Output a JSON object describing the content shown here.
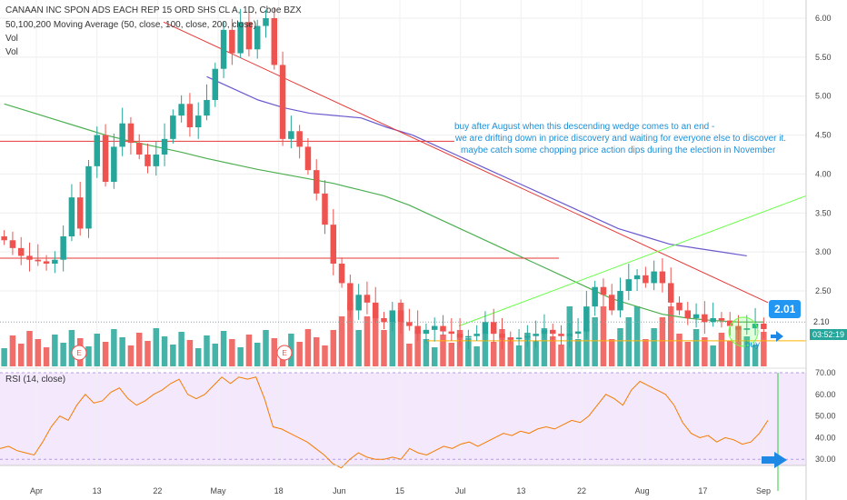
{
  "header": {
    "title": "CANAAN INC SPON ADS EACH REP 15 ORD SHS CL A, 1D, Cboe BZX",
    "ma_indicator": "50,100,200 Moving Average (50, close, 100, close, 200, close)",
    "vol1": "Vol",
    "vol2": "Vol",
    "rsi_label": "RSI (14, close)"
  },
  "annotation": {
    "line1": "buy after August when this descending wedge comes to an end -",
    "line2": "we are drifting down in price discovery and waiting for everyone else to discover it.",
    "line3": "maybe catch some chopping price action dips during the election in November",
    "buy_label": "buy"
  },
  "price": {
    "last": "2.01",
    "axis_price": "2.10",
    "countdown": "03:52:19"
  },
  "colors": {
    "up": "#26a69a",
    "down": "#ef5350",
    "ma50": "#4caf50",
    "ma100": "#6a5acd",
    "trend_red": "#e53935",
    "trend_green": "#66ff44",
    "support": "#ffb300",
    "arrow": "#1e88e5",
    "rsi_line": "#f57c00",
    "rsi_bg": "#f1e6fb",
    "earnings": "#ef5350"
  },
  "icons": [
    "earnings-icon",
    "arrow-left-icon"
  ],
  "earnings_marker": "E",
  "chart_data": [
    {
      "type": "candlestick",
      "title": "CANAAN INC SPON ADS EACH REP 15 ORD SHS CL A, 1D, Cboe BZX",
      "ylim": [
        1.5,
        6.2
      ],
      "y_ticks": [
        "6.00",
        "5.50",
        "5.00",
        "4.50",
        "4.00",
        "3.50",
        "3.00",
        "2.50"
      ],
      "x_ticks": [
        "Apr",
        "13",
        "22",
        "May",
        "18",
        "Jun",
        "15",
        "Jul",
        "13",
        "22",
        "Aug",
        "17",
        "Sep"
      ],
      "close": [
        3.15,
        3.05,
        2.95,
        2.9,
        2.88,
        2.85,
        2.9,
        3.2,
        3.7,
        3.3,
        4.1,
        4.5,
        3.9,
        4.35,
        4.65,
        4.4,
        4.25,
        4.1,
        4.25,
        4.45,
        4.75,
        4.9,
        4.6,
        4.75,
        4.95,
        5.35,
        5.85,
        5.55,
        5.95,
        5.6,
        5.9,
        6.0,
        5.4,
        4.45,
        4.55,
        4.35,
        4.05,
        3.75,
        3.35,
        2.85,
        2.6,
        2.25,
        2.45,
        2.35,
        2.15,
        2.1,
        2.25,
        2.1,
        2.05,
        1.95,
        2.0,
        2.05,
        1.98,
        1.95,
        1.9,
        1.92,
        1.95,
        2.1,
        1.95,
        1.9,
        1.88,
        1.9,
        1.92,
        1.95,
        2.0,
        1.95,
        1.92,
        1.95,
        1.98,
        2.3,
        2.55,
        2.45,
        2.25,
        2.5,
        2.65,
        2.7,
        2.6,
        2.75,
        2.6,
        2.35,
        2.25,
        2.15,
        2.2,
        2.1,
        2.15,
        2.12,
        2.05,
        2.0,
        2.02,
        2.08,
        2.01
      ],
      "series": [
        {
          "name": "MA50",
          "values": [
            4.9,
            4.8,
            4.7,
            4.6,
            4.5,
            4.42,
            4.35,
            4.28,
            4.2,
            4.13,
            4.06,
            4.0,
            3.94,
            3.88,
            3.8,
            3.72,
            3.6,
            3.45,
            3.3,
            3.15,
            3.0,
            2.85,
            2.7,
            2.55,
            2.4,
            2.3,
            2.2,
            2.15,
            2.12,
            2.1,
            2.1
          ]
        },
        {
          "name": "MA100",
          "values": [
            5.25,
            5.1,
            4.95,
            4.85,
            4.78,
            4.75,
            4.72,
            4.6,
            4.5,
            4.35,
            4.2,
            4.05,
            3.9,
            3.75,
            3.6,
            3.45,
            3.3,
            3.2,
            3.1,
            3.05,
            3.0,
            2.95
          ]
        }
      ],
      "trendlines": {
        "descending_resistance": [
          [
            5.8,
            5.9
          ],
          [
            2.35,
            2.35
          ]
        ],
        "horizontal_resistance": 4.42,
        "horizontal_support_1": 2.92,
        "ascending_support": [
          2.05,
          3.72
        ],
        "yellow_support": 1.86
      }
    },
    {
      "type": "line",
      "title": "RSI (14, close)",
      "ylim": [
        25,
        70
      ],
      "y_ticks": [
        "70.00",
        "60.00",
        "50.00",
        "40.00",
        "30.00"
      ],
      "series": [
        {
          "name": "RSI (14, close)",
          "values": [
            35,
            36,
            34,
            33,
            32,
            38,
            45,
            50,
            48,
            55,
            60,
            56,
            57,
            61,
            63,
            58,
            55,
            57,
            60,
            62,
            65,
            67,
            60,
            58,
            60,
            64,
            68,
            65,
            68,
            67,
            68,
            58,
            45,
            44,
            42,
            40,
            38,
            35,
            32,
            28,
            26,
            30,
            33,
            31,
            30,
            30,
            31,
            30,
            35,
            33,
            32,
            34,
            36,
            35,
            37,
            38,
            36,
            38,
            40,
            42,
            41,
            43,
            42,
            44,
            45,
            44,
            46,
            48,
            47,
            50,
            55,
            60,
            58,
            55,
            62,
            66,
            64,
            62,
            60,
            55,
            47,
            42,
            40,
            41,
            38,
            40,
            39,
            37,
            38,
            42,
            48
          ]
        }
      ]
    }
  ]
}
